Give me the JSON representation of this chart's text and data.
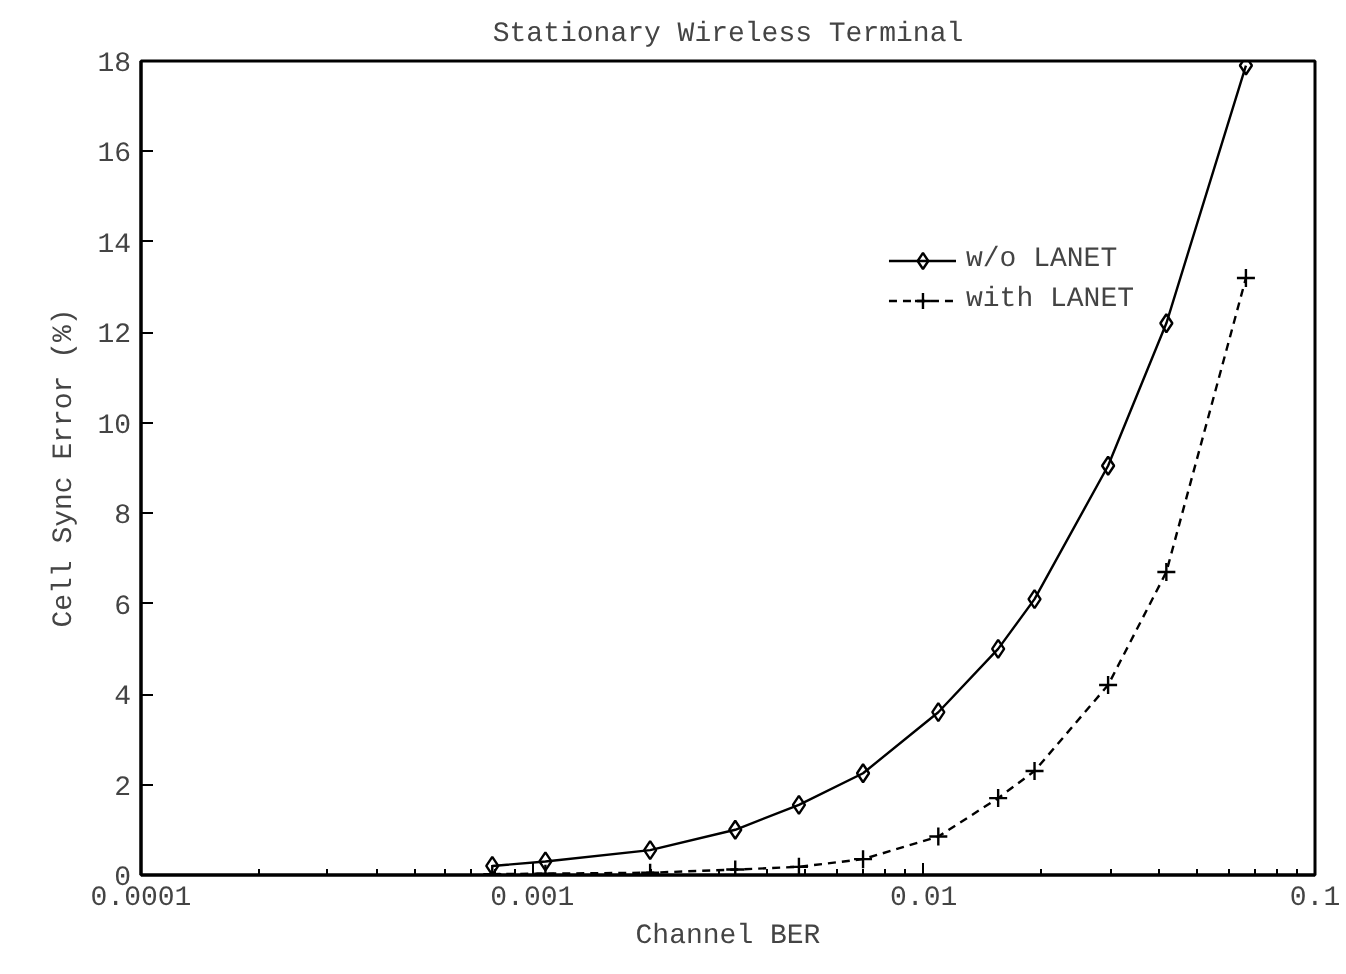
{
  "chart_data": {
    "type": "line",
    "title": "Stationary Wireless Terminal",
    "xlabel": "Channel BER",
    "ylabel": "Cell Sync Error (%)",
    "log": "x",
    "xlim": [
      0.0001,
      0.1
    ],
    "xticks": [
      0.0001,
      0.001,
      0.01,
      0.1
    ],
    "ylim": [
      0,
      18
    ],
    "yticks": [
      0,
      2,
      4,
      6,
      8,
      10,
      12,
      14,
      16,
      18
    ],
    "grid": false,
    "legend": "top right",
    "series": [
      {
        "name": "w/o LANET",
        "color": "#000000",
        "marker": "diamond",
        "line_style": "solid",
        "x": [
          0.00079,
          0.00108,
          0.002,
          0.0033,
          0.0048,
          0.007,
          0.0109,
          0.0155,
          0.0192,
          0.0296,
          0.0417,
          0.0666
        ],
        "values": [
          0.2,
          0.3,
          0.55,
          1.0,
          1.55,
          2.25,
          3.6,
          5.0,
          6.1,
          9.05,
          12.2,
          17.9
        ]
      },
      {
        "name": "with LANET",
        "color": "#000000",
        "marker": "cross",
        "line_style": "dashed",
        "x": [
          0.00079,
          0.00108,
          0.002,
          0.0033,
          0.0048,
          0.007,
          0.0109,
          0.0155,
          0.0192,
          0.0296,
          0.0417,
          0.0666
        ],
        "values": [
          0.02,
          0.03,
          0.05,
          0.12,
          0.18,
          0.35,
          0.85,
          1.7,
          2.3,
          4.2,
          6.7,
          13.2
        ]
      }
    ]
  }
}
